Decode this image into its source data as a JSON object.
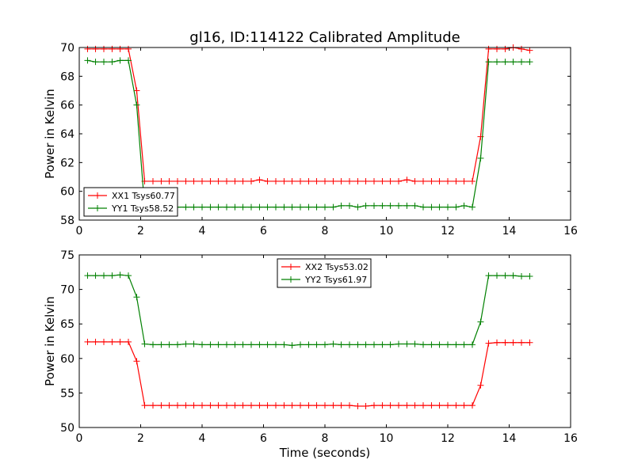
{
  "title": "gl16, ID:114122 Calibrated Amplitude",
  "chart_data": [
    {
      "type": "line",
      "ylabel": "Power in Kelvin",
      "xlabel": "",
      "xlim": [
        0,
        16
      ],
      "ylim": [
        58,
        70
      ],
      "xticks": [
        0,
        2,
        4,
        6,
        8,
        10,
        12,
        14,
        16
      ],
      "yticks": [
        58,
        60,
        62,
        64,
        66,
        68,
        70
      ],
      "grid": false,
      "legend_position": "lower-left",
      "x": [
        0.27,
        0.53,
        0.8,
        1.07,
        1.33,
        1.6,
        1.87,
        2.13,
        2.4,
        2.67,
        2.93,
        3.2,
        3.47,
        3.73,
        4.0,
        4.27,
        4.53,
        4.8,
        5.07,
        5.33,
        5.6,
        5.87,
        6.13,
        6.4,
        6.67,
        6.93,
        7.2,
        7.47,
        7.73,
        8.0,
        8.27,
        8.53,
        8.8,
        9.07,
        9.33,
        9.6,
        9.87,
        10.13,
        10.4,
        10.67,
        10.93,
        11.2,
        11.47,
        11.73,
        12.0,
        12.27,
        12.53,
        12.8,
        13.07,
        13.33,
        13.6,
        13.87,
        14.13,
        14.4,
        14.67
      ],
      "series": [
        {
          "name": "XX1 Tsys60.77",
          "color": "#ff0000",
          "values": [
            69.9,
            69.9,
            69.9,
            69.9,
            69.9,
            69.9,
            67.0,
            60.7,
            60.7,
            60.7,
            60.7,
            60.7,
            60.7,
            60.7,
            60.7,
            60.7,
            60.7,
            60.7,
            60.7,
            60.7,
            60.7,
            60.8,
            60.7,
            60.7,
            60.7,
            60.7,
            60.7,
            60.7,
            60.7,
            60.7,
            60.7,
            60.7,
            60.7,
            60.7,
            60.7,
            60.7,
            60.7,
            60.7,
            60.7,
            60.8,
            60.7,
            60.7,
            60.7,
            60.7,
            60.7,
            60.7,
            60.7,
            60.7,
            63.8,
            69.9,
            69.9,
            69.9,
            70.0,
            69.9,
            69.8
          ]
        },
        {
          "name": "YY1 Tsys58.52",
          "color": "#008000",
          "values": [
            69.1,
            69.0,
            69.0,
            69.0,
            69.1,
            69.1,
            66.0,
            58.9,
            58.9,
            58.9,
            58.9,
            58.9,
            58.9,
            58.9,
            58.9,
            58.9,
            58.9,
            58.9,
            58.9,
            58.9,
            58.9,
            58.9,
            58.9,
            58.9,
            58.9,
            58.9,
            58.9,
            58.9,
            58.9,
            58.9,
            58.9,
            59.0,
            59.0,
            58.9,
            59.0,
            59.0,
            59.0,
            59.0,
            59.0,
            59.0,
            59.0,
            58.9,
            58.9,
            58.9,
            58.9,
            58.9,
            59.0,
            58.9,
            62.3,
            69.0,
            69.0,
            69.0,
            69.0,
            69.0,
            69.0
          ]
        }
      ]
    },
    {
      "type": "line",
      "ylabel": "Power in Kelvin",
      "xlabel": "Time (seconds)",
      "xlim": [
        0,
        16
      ],
      "ylim": [
        50,
        75
      ],
      "xticks": [
        0,
        2,
        4,
        6,
        8,
        10,
        12,
        14,
        16
      ],
      "yticks": [
        50,
        55,
        60,
        65,
        70,
        75
      ],
      "grid": false,
      "legend_position": "top-center",
      "x": [
        0.27,
        0.53,
        0.8,
        1.07,
        1.33,
        1.6,
        1.87,
        2.13,
        2.4,
        2.67,
        2.93,
        3.2,
        3.47,
        3.73,
        4.0,
        4.27,
        4.53,
        4.8,
        5.07,
        5.33,
        5.6,
        5.87,
        6.13,
        6.4,
        6.67,
        6.93,
        7.2,
        7.47,
        7.73,
        8.0,
        8.27,
        8.53,
        8.8,
        9.07,
        9.33,
        9.6,
        9.87,
        10.13,
        10.4,
        10.67,
        10.93,
        11.2,
        11.47,
        11.73,
        12.0,
        12.27,
        12.53,
        12.8,
        13.07,
        13.33,
        13.6,
        13.87,
        14.13,
        14.4,
        14.67
      ],
      "series": [
        {
          "name": "XX2 Tsys53.02",
          "color": "#ff0000",
          "values": [
            62.4,
            62.4,
            62.4,
            62.4,
            62.4,
            62.4,
            59.6,
            53.2,
            53.2,
            53.2,
            53.2,
            53.2,
            53.2,
            53.2,
            53.2,
            53.2,
            53.2,
            53.2,
            53.2,
            53.2,
            53.2,
            53.2,
            53.2,
            53.2,
            53.2,
            53.2,
            53.2,
            53.2,
            53.2,
            53.2,
            53.2,
            53.2,
            53.2,
            53.1,
            53.1,
            53.2,
            53.2,
            53.2,
            53.2,
            53.2,
            53.2,
            53.2,
            53.2,
            53.2,
            53.2,
            53.2,
            53.2,
            53.2,
            56.1,
            62.2,
            62.3,
            62.3,
            62.3,
            62.3,
            62.3
          ]
        },
        {
          "name": "YY2 Tsys61.97",
          "color": "#008000",
          "values": [
            72.0,
            72.0,
            72.0,
            72.0,
            72.1,
            72.0,
            68.9,
            62.1,
            62.0,
            62.0,
            62.0,
            62.0,
            62.1,
            62.1,
            62.0,
            62.0,
            62.0,
            62.0,
            62.0,
            62.0,
            62.0,
            62.0,
            62.0,
            62.0,
            62.0,
            61.9,
            62.0,
            62.0,
            62.0,
            62.0,
            62.1,
            62.0,
            62.0,
            62.0,
            62.0,
            62.0,
            62.0,
            62.0,
            62.1,
            62.1,
            62.1,
            62.0,
            62.0,
            62.0,
            62.0,
            62.0,
            62.0,
            62.0,
            65.3,
            72.0,
            72.0,
            72.0,
            72.0,
            71.9,
            71.9
          ]
        }
      ]
    }
  ]
}
